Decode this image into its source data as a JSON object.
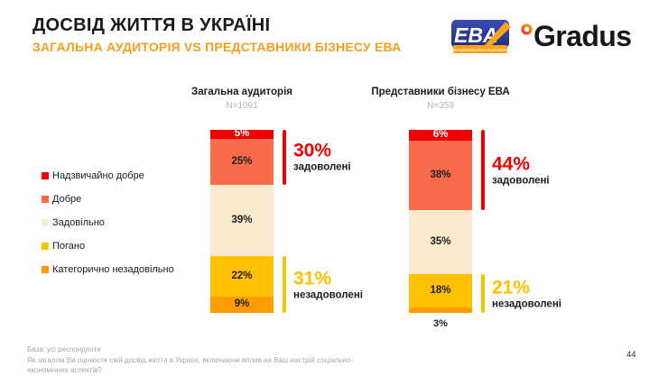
{
  "header": {
    "title": "ДОСВІД ЖИТТЯ В УКРАЇНІ",
    "subtitle": "ЗАГАЛЬНА АУДИТОРІЯ VS ПРЕДСТАВНИКИ БІЗНЕСУ ЕВА",
    "subtitle_color": "#f99d1c"
  },
  "logos": {
    "eba_text": "EBA",
    "eba_subtext": "European Business Association",
    "gradus_text": "Gradus"
  },
  "chart_data": {
    "type": "bar",
    "subtype": "stacked-vertical-columns",
    "unit": "%",
    "ylim": [
      0,
      100
    ],
    "answer_options": [
      "Надзвичайно добре",
      "Добре",
      "Задовільно",
      "Погано",
      "Категорично незадовільно"
    ],
    "colors": [
      "#f20000",
      "#f96b4b",
      "#fcead0",
      "#ffc000",
      "#ff9c00"
    ],
    "label_colors": [
      "#ffffff",
      "#1d1d1d",
      "#1d1d1d",
      "#1d1d1d",
      "#1d1d1d"
    ],
    "satisfied_color": "#f20000",
    "dissatisfied_color": "#ffc000",
    "legend_position": "left",
    "bars": [
      {
        "title": "Загальна аудиторія",
        "n": "N=1091",
        "values": [
          5,
          25,
          39,
          22,
          9
        ],
        "satisfied_pct": "30%",
        "satisfied_label": "задоволені",
        "dissatisfied_pct": "31%",
        "dissatisfied_label": "незадоволені"
      },
      {
        "title": "Представники бізнесу ЕВА",
        "n": "N=359",
        "values": [
          6,
          38,
          35,
          18,
          3
        ],
        "satisfied_pct": "44%",
        "satisfied_label": "задоволені",
        "dissatisfied_pct": "21%",
        "dissatisfied_label": "незадоволені"
      }
    ]
  },
  "footer": {
    "lines": [
      "База: усі респонденти",
      "Як загалом Ви оцінюєте свій досвід життя в Україні, включаючи вплив на Ваш настрій соціально-",
      "економічних аспектів?"
    ],
    "page": "44"
  }
}
